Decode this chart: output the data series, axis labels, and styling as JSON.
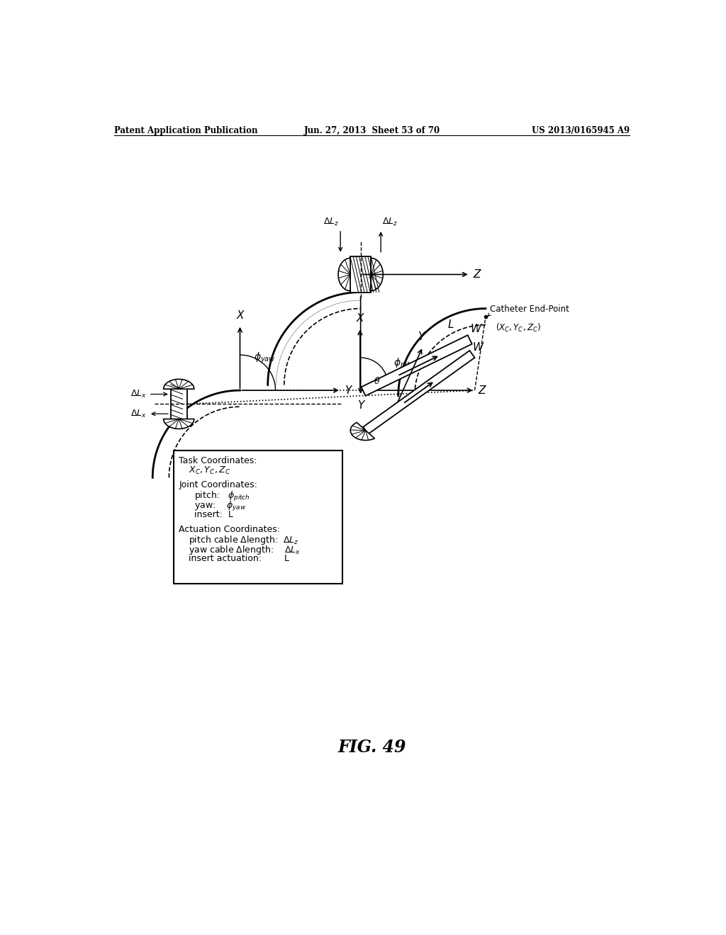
{
  "title_left": "Patent Application Publication",
  "title_mid": "Jun. 27, 2013  Sheet 53 of 70",
  "title_right": "US 2013/0165945 A9",
  "fig_label": "FIG. 49",
  "background": "#ffffff",
  "text_color": "#000000"
}
